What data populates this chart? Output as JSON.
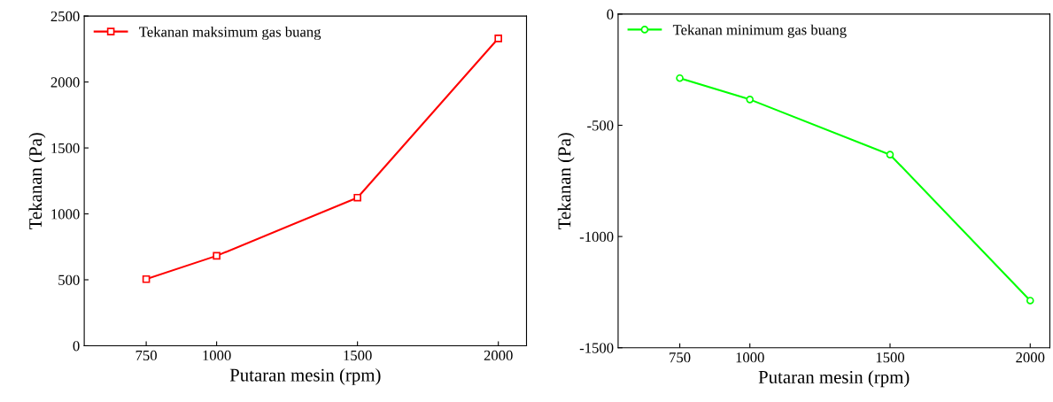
{
  "chart_data": [
    {
      "type": "line",
      "xlabel": "Putaran mesin (rpm)",
      "ylabel": "Tekanan (Pa)",
      "x": [
        750,
        1000,
        1500,
        2000
      ],
      "series": [
        {
          "name": "Tekanan maksimum gas buang",
          "color": "#ff0000",
          "values": [
            505,
            682,
            1123,
            2331
          ]
        }
      ],
      "xlim": [
        530,
        2100
      ],
      "xticks": [
        750,
        1000,
        1500,
        2000
      ],
      "ylim": [
        0,
        2500
      ],
      "yticks": [
        0,
        500,
        1000,
        1500,
        2000,
        2500
      ],
      "marker": "square",
      "line_style": "solid",
      "legend": "top left",
      "grid": false
    },
    {
      "type": "line",
      "xlabel": "Putaran mesin (rpm)",
      "ylabel": "Tekanan (Pa)",
      "x": [
        750,
        1000,
        1500,
        2000
      ],
      "series": [
        {
          "name": "Tekanan minimum gas buang",
          "color": "#00ff00",
          "values": [
            -288,
            -384,
            -632,
            -1288
          ]
        }
      ],
      "xlim": [
        530,
        2070
      ],
      "xticks": [
        750,
        1000,
        1500,
        2000
      ],
      "ylim": [
        -1500,
        0
      ],
      "yticks": [
        -1500,
        -1000,
        -500,
        0
      ],
      "marker": "circle",
      "line_style": "solid",
      "legend": "top left",
      "grid": false
    }
  ]
}
